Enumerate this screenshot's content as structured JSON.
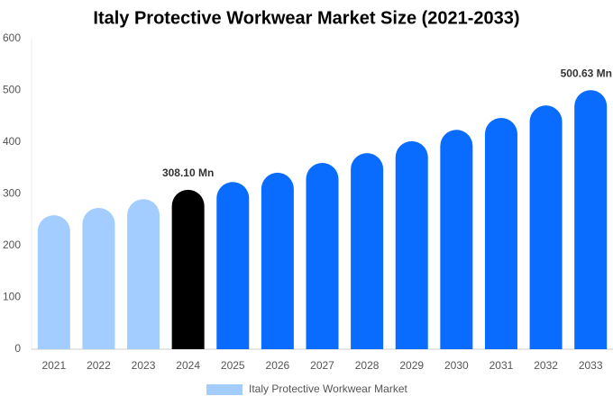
{
  "chart_data": {
    "type": "bar",
    "title": "Italy Protective Workwear Market Size (2021-2033)",
    "categories": [
      "2021",
      "2022",
      "2023",
      "2024",
      "2025",
      "2026",
      "2027",
      "2028",
      "2029",
      "2030",
      "2031",
      "2032",
      "2033"
    ],
    "series": [
      {
        "name": "Italy Protective Workwear Market",
        "color": "#a3cdff",
        "colors": [
          "#a3cdff",
          "#a3cdff",
          "#a3cdff",
          "#000000",
          "#0a6cff",
          "#0a6cff",
          "#0a6cff",
          "#0a6cff",
          "#0a6cff",
          "#0a6cff",
          "#0a6cff",
          "#0a6cff",
          "#0a6cff"
        ],
        "values": [
          259,
          273,
          290,
          308.1,
          323,
          341,
          360,
          379,
          402,
          424,
          447,
          471,
          500.63
        ],
        "value_labels": [
          null,
          null,
          null,
          "308.10 Mn",
          null,
          null,
          null,
          null,
          null,
          null,
          null,
          null,
          "500.63 Mn"
        ]
      }
    ],
    "ylim": [
      0,
      600
    ],
    "yticks": [
      0,
      100,
      200,
      300,
      400,
      500,
      600
    ],
    "grid": false
  }
}
